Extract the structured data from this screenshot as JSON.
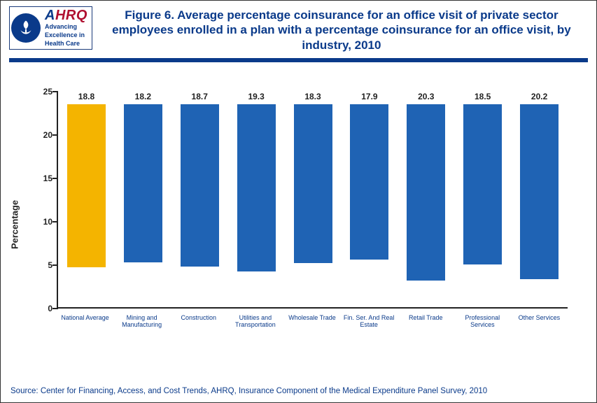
{
  "header": {
    "logo": {
      "ahrq_a": "A",
      "ahrq_hrq": "HRQ",
      "tagline_l1": "Advancing",
      "tagline_l2": "Excellence in",
      "tagline_l3": "Health Care"
    },
    "title": "Figure 6. Average percentage coinsurance for an office visit of private sector employees enrolled in a plan with a percentage coinsurance for an office visit, by industry, 2010"
  },
  "chart": {
    "type": "bar",
    "ylabel": "Percentage",
    "ylim": [
      0,
      25
    ],
    "ytick_step": 5,
    "yticks": [
      0,
      5,
      10,
      15,
      20,
      25
    ],
    "categories": [
      "National Average",
      "Mining and Manufacturing",
      "Construction",
      "Utilities and Transportation",
      "Wholesale Trade",
      "Fin. Ser. And Real Estate",
      "Retail Trade",
      "Professional Services",
      "Other Services"
    ],
    "values": [
      18.8,
      18.2,
      18.7,
      19.3,
      18.3,
      17.9,
      20.3,
      18.5,
      20.2
    ],
    "bar_colors": [
      "#f4b400",
      "#1f63b4",
      "#1f63b4",
      "#1f63b4",
      "#1f63b4",
      "#1f63b4",
      "#1f63b4",
      "#1f63b4",
      "#1f63b4"
    ],
    "bar_width": 0.68,
    "label_fontsize": 12,
    "xlabel_fontsize": 9,
    "xlabel_color": "#0a3a8a",
    "axis_color": "#222222",
    "background_color": "#ffffff",
    "title_color": "#0a3a8a",
    "rule_color": "#0a3a8a",
    "grid": false
  },
  "source": "Source: Center for Financing, Access, and Cost Trends, AHRQ, Insurance Component of the Medical Expenditure Panel Survey, 2010"
}
